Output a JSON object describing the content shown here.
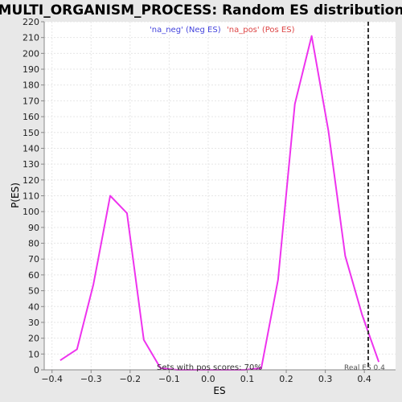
{
  "chart_data": {
    "type": "line",
    "title": "MULTI_ORGANISM_PROCESS: Random ES distribution",
    "xlabel": "ES",
    "ylabel": "P(ES)",
    "xlim": [
      -0.42,
      0.48
    ],
    "ylim": [
      0,
      220
    ],
    "x_ticks": [
      -0.4,
      -0.3,
      -0.2,
      -0.1,
      0.0,
      0.1,
      0.2,
      0.3,
      0.4
    ],
    "x_tick_labels": [
      "−0.4",
      "−0.3",
      "−0.2",
      "−0.1",
      "0.0",
      "0.1",
      "0.2",
      "0.3",
      "0.4"
    ],
    "y_ticks": [
      0,
      10,
      20,
      30,
      40,
      50,
      60,
      70,
      80,
      90,
      100,
      110,
      120,
      130,
      140,
      150,
      160,
      170,
      180,
      190,
      200,
      210,
      220
    ],
    "grid": true,
    "legend": [
      {
        "label": "'na_neg' (Neg ES)",
        "color": "#4444dd"
      },
      {
        "label": "'na_pos' (Pos ES)",
        "color": "#dd4444"
      }
    ],
    "series": [
      {
        "color": "#ee33ee",
        "x": [
          -0.379,
          -0.336,
          -0.294,
          -0.251,
          -0.208,
          -0.165,
          -0.122,
          -0.079,
          -0.036,
          0.007,
          0.05,
          0.093,
          0.136,
          0.179,
          0.222,
          0.265,
          0.308,
          0.351,
          0.394,
          0.437
        ],
        "y": [
          6,
          13,
          54,
          110,
          99,
          19,
          1,
          0,
          0,
          0,
          0,
          0,
          1,
          57,
          168,
          211,
          151,
          72,
          35,
          5
        ]
      }
    ],
    "real_es": 0.41,
    "real_es_label": "Real ES 0.4",
    "annotation": "Sets with pos scores: 70%"
  },
  "colors": {
    "background": "#e8e8e8",
    "plot_background": "#ffffff",
    "grid": "#e6e6e6",
    "line": "#ee33ee",
    "real_es_line": "#333333"
  }
}
